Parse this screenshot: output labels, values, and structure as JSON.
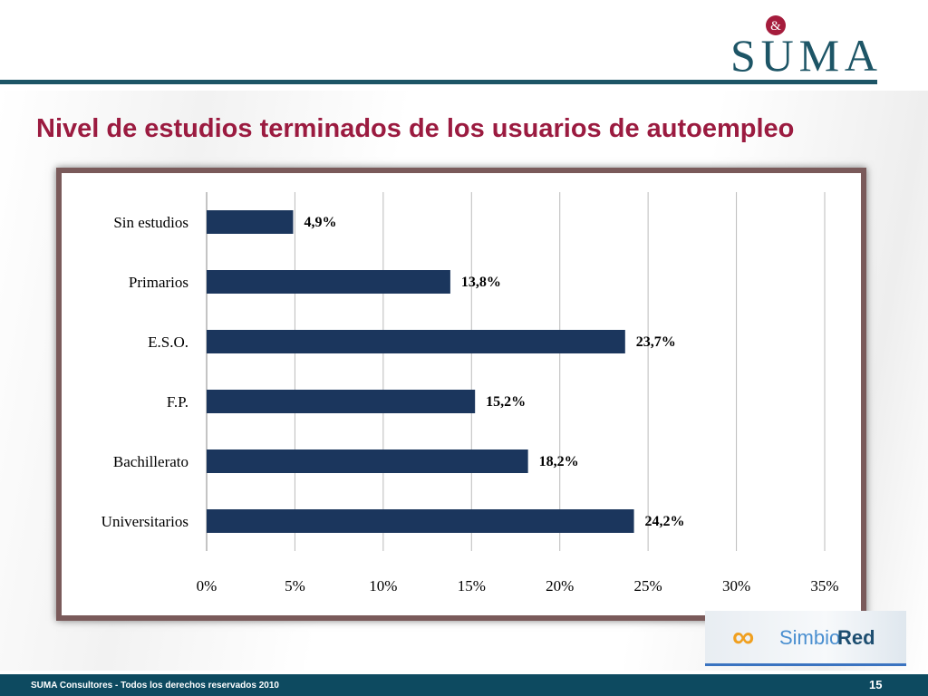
{
  "logo": {
    "text": "SUMA",
    "ampersand": "&"
  },
  "title": "Nivel de estudios terminados de los usuarios de autoempleo",
  "chart_data": {
    "type": "bar",
    "orientation": "horizontal",
    "categories": [
      "Sin estudios",
      "Primarios",
      "E.S.O.",
      "F.P.",
      "Bachillerato",
      "Universitarios"
    ],
    "values": [
      4.9,
      13.8,
      23.7,
      15.2,
      18.2,
      24.2
    ],
    "data_labels": [
      "4,9%",
      "13,8%",
      "23,7%",
      "15,2%",
      "18,2%",
      "24,2%"
    ],
    "xlim": [
      0,
      35
    ],
    "ticks": [
      0,
      5,
      10,
      15,
      20,
      25,
      30,
      35
    ],
    "tick_labels": [
      "0%",
      "5%",
      "10%",
      "15%",
      "20%",
      "25%",
      "30%",
      "35%"
    ],
    "grid": true,
    "bar_color": "#1b365d"
  },
  "partner_logo": {
    "part1": "Simbio",
    "part2": "Red"
  },
  "footer": {
    "copyright": "SUMA Consultores - Todos los derechos reservados 2010",
    "page": "15"
  }
}
